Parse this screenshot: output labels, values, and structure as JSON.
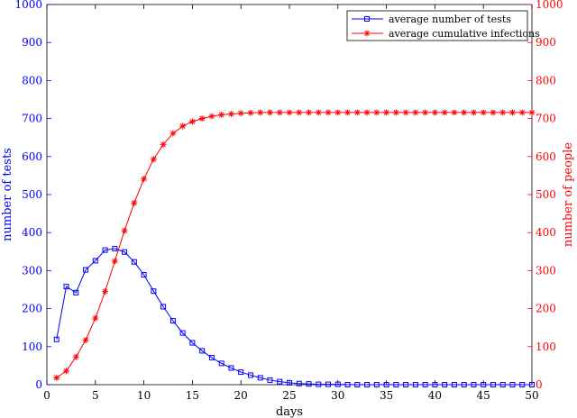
{
  "chart_data": {
    "type": "line",
    "xlabel": "days",
    "ylabel_left": "number of tests",
    "ylabel_right": "number of people",
    "xlim": [
      0,
      50
    ],
    "ylim_left": [
      0,
      1000
    ],
    "ylim_right": [
      0,
      1000
    ],
    "x_ticks": [
      0,
      5,
      10,
      15,
      20,
      25,
      30,
      35,
      40,
      45,
      50
    ],
    "y_ticks": [
      0,
      100,
      200,
      300,
      400,
      500,
      600,
      700,
      800,
      900,
      1000
    ],
    "grid": false,
    "legend_position": "top-right",
    "series": [
      {
        "name": "average number of tests",
        "axis": "left",
        "color": "#0000ff",
        "marker": "square",
        "x": [
          1,
          2,
          3,
          4,
          5,
          6,
          7,
          8,
          9,
          10,
          11,
          12,
          13,
          14,
          15,
          16,
          17,
          18,
          19,
          20,
          21,
          22,
          23,
          24,
          25,
          26,
          27,
          28,
          29,
          30,
          31,
          32,
          33,
          34,
          35,
          36,
          37,
          38,
          39,
          40,
          41,
          42,
          43,
          44,
          45,
          46,
          47,
          48,
          49,
          50
        ],
        "values": [
          119,
          258,
          242,
          302,
          326,
          354,
          358,
          349,
          323,
          289,
          246,
          205,
          168,
          136,
          110,
          89,
          71,
          56,
          44,
          33,
          25,
          18,
          12,
          8,
          5,
          3,
          2,
          1,
          1,
          1,
          0,
          0,
          0,
          0,
          0,
          0,
          0,
          0,
          0,
          0,
          0,
          0,
          0,
          0,
          0,
          0,
          0,
          0,
          0,
          0
        ]
      },
      {
        "name": "average cumulative infections",
        "axis": "right",
        "color": "#ff0000",
        "marker": "asterisk",
        "x": [
          1,
          2,
          3,
          4,
          5,
          6,
          7,
          8,
          9,
          10,
          11,
          12,
          13,
          14,
          15,
          16,
          17,
          18,
          19,
          20,
          21,
          22,
          23,
          24,
          25,
          26,
          27,
          28,
          29,
          30,
          31,
          32,
          33,
          34,
          35,
          36,
          37,
          38,
          39,
          40,
          41,
          42,
          43,
          44,
          45,
          46,
          47,
          48,
          49,
          50
        ],
        "values": [
          18,
          36,
          73,
          117,
          175,
          245,
          325,
          405,
          478,
          541,
          593,
          632,
          661,
          680,
          692,
          700,
          706,
          710,
          712,
          714,
          715,
          716,
          716,
          716,
          716,
          716,
          716,
          716,
          716,
          716,
          716,
          716,
          716,
          716,
          716,
          716,
          716,
          716,
          716,
          716,
          716,
          716,
          716,
          716,
          716,
          716,
          716,
          716,
          716,
          716
        ]
      }
    ]
  }
}
